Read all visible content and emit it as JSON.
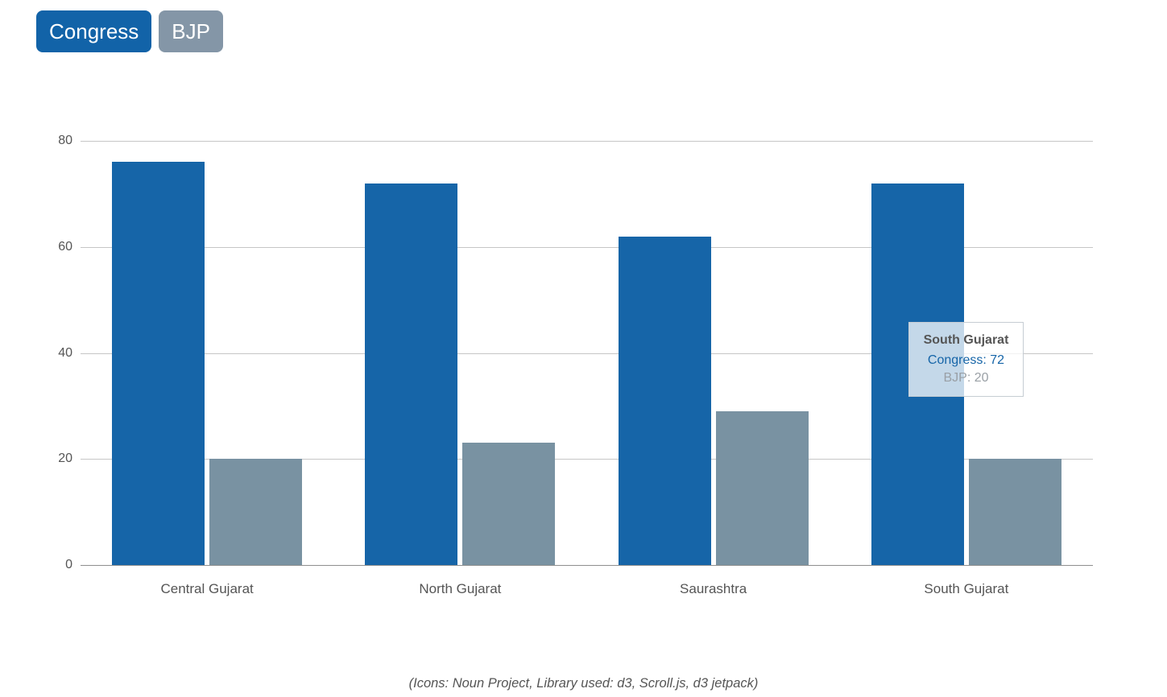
{
  "legend": {
    "buttons": [
      {
        "id": "congress",
        "label": "Congress",
        "color": "#1263a8",
        "text_color": "#ffffff"
      },
      {
        "id": "bjp",
        "label": "BJP",
        "color": "#8496a7",
        "text_color": "#ffffff"
      }
    ]
  },
  "chart_data": {
    "type": "bar",
    "categories": [
      "Central Gujarat",
      "North Gujarat",
      "Saurashtra",
      "South Gujarat"
    ],
    "series": [
      {
        "name": "Congress",
        "color": "#1665a8",
        "values": [
          76,
          72,
          62,
          72
        ]
      },
      {
        "name": "BJP",
        "color": "#7992a2",
        "values": [
          20,
          23,
          29,
          20
        ]
      }
    ],
    "ylim": [
      0,
      80
    ],
    "yticks": [
      0,
      20,
      40,
      60,
      80
    ],
    "grid": true,
    "legend_position": "top-left",
    "axis_text_color": "#555555",
    "gridline_color": "#c6c6c6",
    "baseline_color": "#8f8f8f"
  },
  "tooltip": {
    "title": "South Gujarat",
    "rows": [
      {
        "name": "Congress",
        "value": "72",
        "color": "#1665a8"
      },
      {
        "name": "BJP",
        "value": "20",
        "color": "#9aa0a6"
      }
    ]
  },
  "footer": {
    "credits": "(Icons: Noun Project, Library used: d3, Scroll.js, d3 jetpack)"
  }
}
